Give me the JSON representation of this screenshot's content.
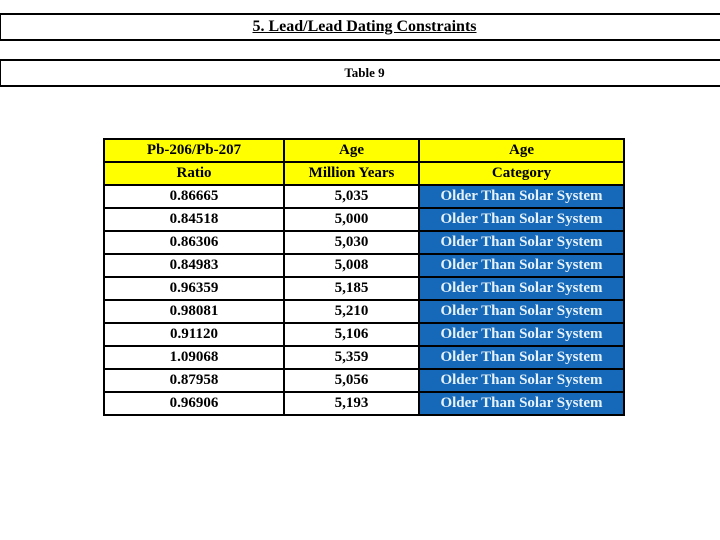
{
  "page": {
    "title": "5. Lead/Lead Dating Constraints",
    "subtitle": "Table 9"
  },
  "colors": {
    "header_bg": "#FFFF00",
    "category_bg": "#1668B8",
    "category_text": "#E6F2FA",
    "border": "#000000",
    "page_bg": "#FFFFFF"
  },
  "table": {
    "header_row1": [
      "Pb-206/Pb-207",
      "Age",
      "Age"
    ],
    "header_row2": [
      "Ratio",
      "Million Years",
      "Category"
    ],
    "rows": [
      {
        "ratio": "0.86665",
        "age": "5,035",
        "category": "Older Than Solar System"
      },
      {
        "ratio": "0.84518",
        "age": "5,000",
        "category": "Older Than Solar System"
      },
      {
        "ratio": "0.86306",
        "age": "5,030",
        "category": "Older Than Solar System"
      },
      {
        "ratio": "0.84983",
        "age": "5,008",
        "category": "Older Than Solar System"
      },
      {
        "ratio": "0.96359",
        "age": "5,185",
        "category": "Older Than Solar System"
      },
      {
        "ratio": "0.98081",
        "age": "5,210",
        "category": "Older Than Solar System"
      },
      {
        "ratio": "0.91120",
        "age": "5,106",
        "category": "Older Than Solar System"
      },
      {
        "ratio": "1.09068",
        "age": "5,359",
        "category": "Older Than Solar System"
      },
      {
        "ratio": "0.87958",
        "age": "5,056",
        "category": "Older Than Solar System"
      },
      {
        "ratio": "0.96906",
        "age": "5,193",
        "category": "Older Than Solar System"
      }
    ]
  },
  "chart_data": {
    "type": "table",
    "title": "Table 9",
    "columns": [
      "Pb-206/Pb-207 Ratio",
      "Age Million Years",
      "Age Category"
    ],
    "ratios": [
      0.86665,
      0.84518,
      0.86306,
      0.84983,
      0.96359,
      0.98081,
      0.9112,
      1.09068,
      0.87958,
      0.96906
    ],
    "ages_million_years": [
      5035,
      5000,
      5030,
      5008,
      5185,
      5210,
      5106,
      5359,
      5056,
      5193
    ],
    "categories": [
      "Older Than Solar System",
      "Older Than Solar System",
      "Older Than Solar System",
      "Older Than Solar System",
      "Older Than Solar System",
      "Older Than Solar System",
      "Older Than Solar System",
      "Older Than Solar System",
      "Older Than Solar System",
      "Older Than Solar System"
    ]
  }
}
